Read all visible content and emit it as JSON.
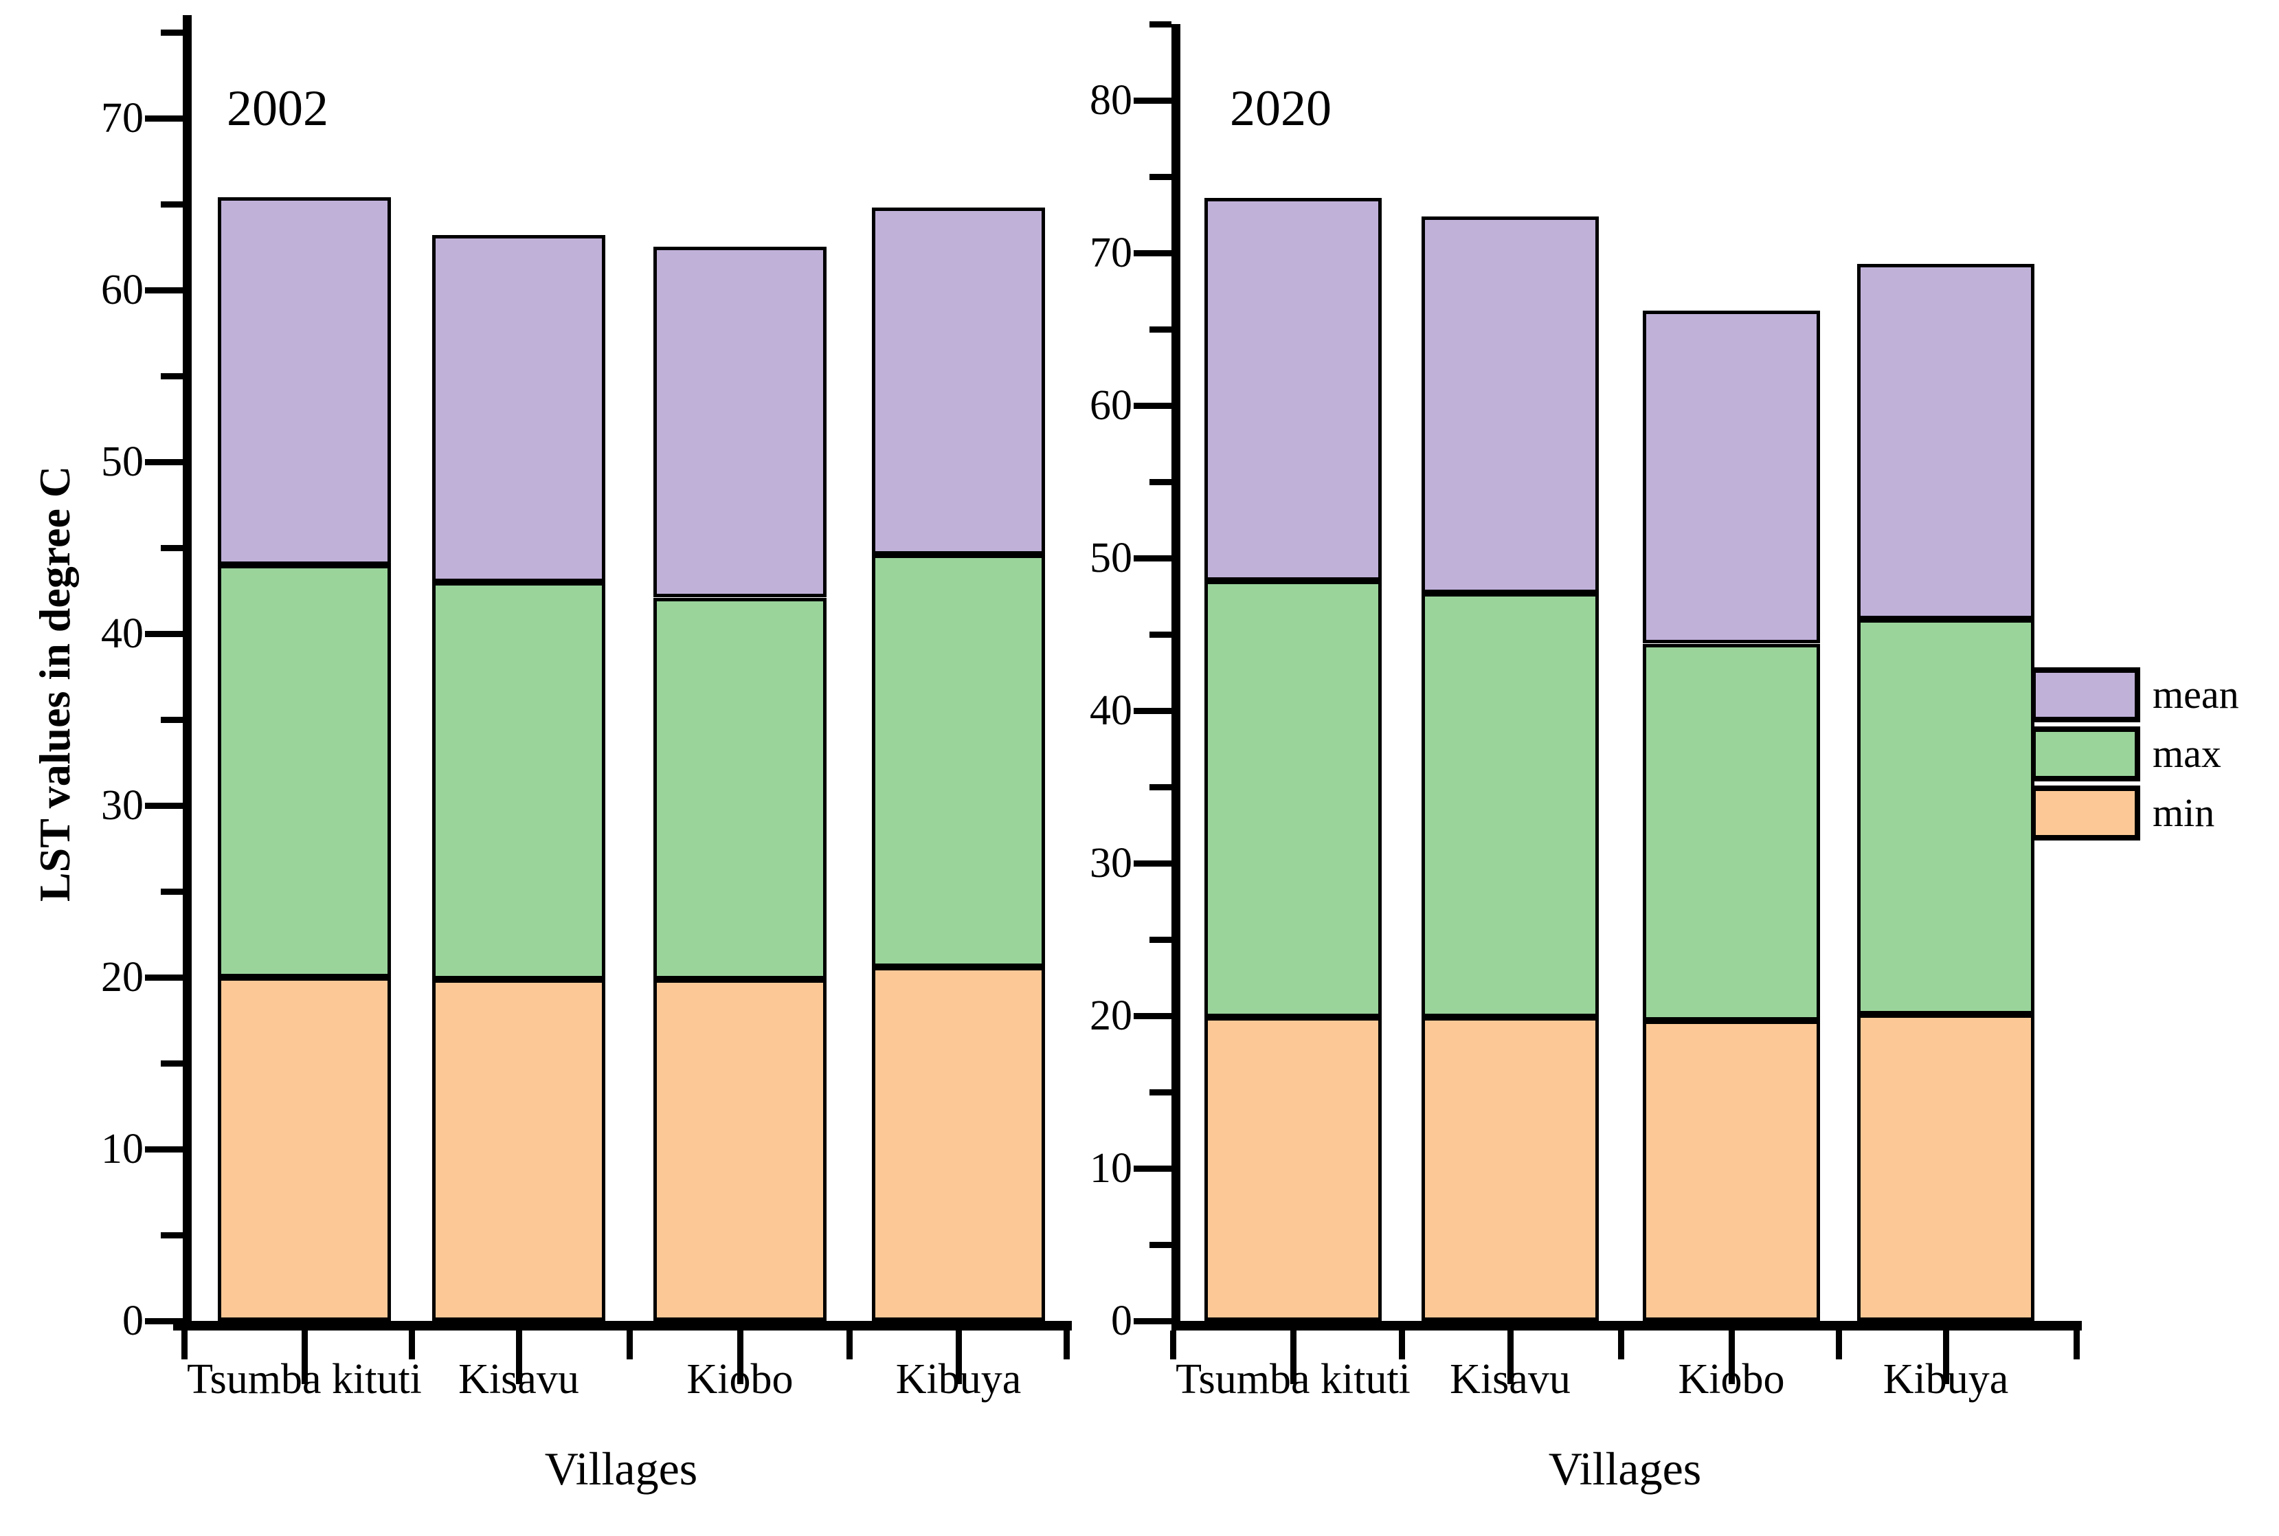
{
  "figure": {
    "ylabel": "LST values in degree C",
    "xlabel": "Villages",
    "legend": [
      {
        "label": "mean",
        "color": "#c0b1d9"
      },
      {
        "label": "max",
        "color": "#9ad49b"
      },
      {
        "label": "min",
        "color": "#fcc996"
      }
    ]
  },
  "chart_data": [
    {
      "type": "bar",
      "stacked": true,
      "title": "2002",
      "xlabel": "Villages",
      "ylabel": "LST values in degree C",
      "categories": [
        "Tsumba kituti",
        "Kisavu",
        "Kiobo",
        "Kibuya"
      ],
      "series": [
        {
          "name": "min",
          "values": [
            20.0,
            19.9,
            19.9,
            20.6
          ],
          "cumulative": [
            20.0,
            19.9,
            19.9,
            20.6
          ]
        },
        {
          "name": "max",
          "values": [
            24.0,
            23.1,
            22.2,
            24.0
          ],
          "cumulative": [
            44.0,
            43.0,
            42.1,
            44.6
          ]
        },
        {
          "name": "mean",
          "values": [
            21.4,
            20.2,
            20.4,
            20.2
          ],
          "cumulative": [
            65.4,
            63.2,
            62.5,
            64.8
          ]
        }
      ],
      "totals": [
        65.4,
        63.2,
        62.5,
        64.8
      ],
      "ylim": [
        0,
        76
      ],
      "yticks": [
        0,
        10,
        20,
        30,
        40,
        50,
        60,
        70
      ],
      "ytick_minor_step": 5,
      "grid": false,
      "legend_position": "outside-right-shared"
    },
    {
      "type": "bar",
      "stacked": true,
      "title": "2020",
      "xlabel": "Villages",
      "ylabel": "LST values in degree C",
      "categories": [
        "Tsumba kituti",
        "Kisavu",
        "Kiobo",
        "Kibuya"
      ],
      "series": [
        {
          "name": "min",
          "values": [
            19.9,
            19.9,
            19.7,
            20.1
          ],
          "cumulative": [
            19.9,
            19.9,
            19.7,
            20.1
          ]
        },
        {
          "name": "max",
          "values": [
            28.6,
            27.8,
            24.7,
            25.9
          ],
          "cumulative": [
            48.5,
            47.7,
            44.4,
            46.0
          ]
        },
        {
          "name": "mean",
          "values": [
            25.1,
            24.7,
            21.8,
            23.3
          ],
          "cumulative": [
            73.6,
            72.4,
            66.2,
            69.3
          ]
        }
      ],
      "totals": [
        73.6,
        72.4,
        66.2,
        69.3
      ],
      "ylim": [
        0,
        85
      ],
      "yticks": [
        0,
        10,
        20,
        30,
        40,
        50,
        60,
        70,
        80
      ],
      "ytick_minor_step": 5,
      "grid": false,
      "legend_position": "outside-right-shared"
    }
  ]
}
